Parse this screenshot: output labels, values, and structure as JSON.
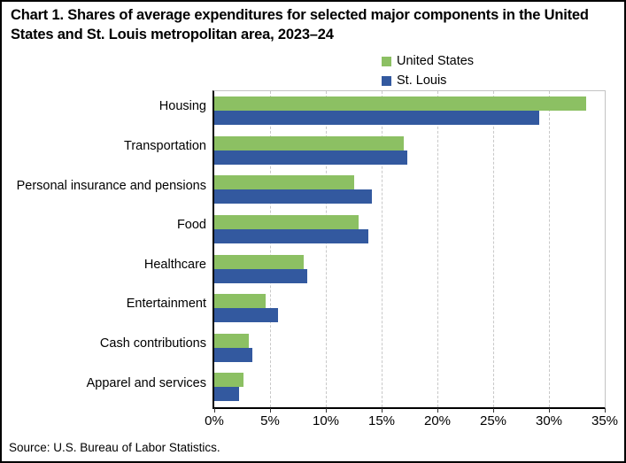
{
  "title": "Chart 1. Shares of average expenditures for selected major components in the United States and St. Louis metropolitan area, 2023–24",
  "source": "Source: U.S. Bureau of Labor Statistics.",
  "colors": {
    "united_states": "#8CC063",
    "st_louis": "#33599F",
    "gridline": "#C8C8C8",
    "axis": "#000000"
  },
  "chart_data": {
    "type": "bar",
    "orientation": "horizontal",
    "title": "Chart 1. Shares of average expenditures for selected major components in the United States and St. Louis metropolitan area, 2023–24",
    "categories": [
      "Housing",
      "Transportation",
      "Personal insurance and pensions",
      "Food",
      "Healthcare",
      "Entertainment",
      "Cash contributions",
      "Apparel and services"
    ],
    "series": [
      {
        "name": "United States",
        "color": "#8CC063",
        "values": [
          33.3,
          17.0,
          12.5,
          12.9,
          8.0,
          4.6,
          3.1,
          2.6
        ]
      },
      {
        "name": "St. Louis",
        "color": "#33599F",
        "values": [
          29.1,
          17.3,
          14.1,
          13.8,
          8.3,
          5.7,
          3.4,
          2.2
        ]
      }
    ],
    "xlabel": "",
    "ylabel": "",
    "x_ticks": [
      "0%",
      "5%",
      "10%",
      "15%",
      "20%",
      "25%",
      "30%",
      "35%"
    ],
    "xlim": [
      0,
      35
    ],
    "grid": "vertical-dashed",
    "legend_position": "top-right",
    "value_unit": "percent of average annual expenditures"
  }
}
